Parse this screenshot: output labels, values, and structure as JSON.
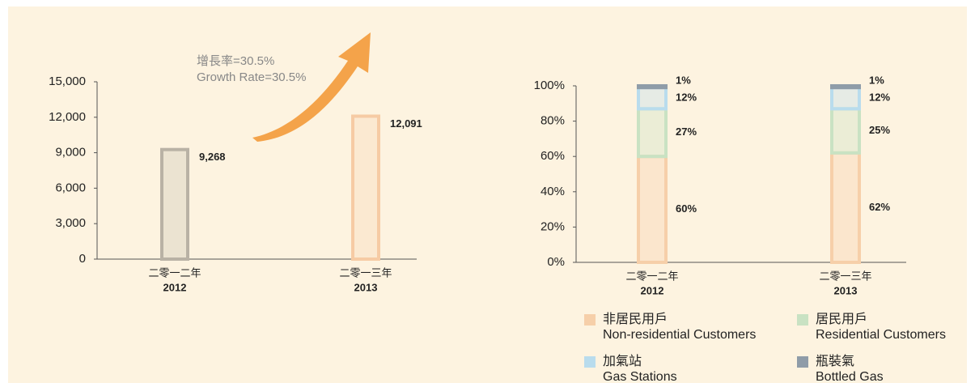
{
  "chart_data": [
    {
      "type": "bar",
      "annotation": [
        "增長率=30.5%",
        "Growth Rate=30.5%"
      ],
      "categories": [
        "2012",
        "2013"
      ],
      "categories_zh": [
        "二零一二年",
        "二零一三年"
      ],
      "series": [
        {
          "name": null,
          "colors": [
            "#b9b2a5",
            "#f6cba4"
          ],
          "values": [
            9268,
            12091
          ],
          "value_labels": [
            "9,268",
            "12,091"
          ]
        }
      ],
      "ylim": [
        0,
        15000
      ],
      "yticks": [
        0,
        {
          "value": 3000,
          "label": "3,000"
        },
        {
          "value": 6000,
          "label": "6,000"
        },
        {
          "value": 9000,
          "label": "9,000"
        },
        {
          "value": 12000,
          "label": "12,000"
        },
        {
          "value": 15000,
          "label": "15,000"
        }
      ]
    },
    {
      "type": "stacked_bar",
      "categories": [
        "2012",
        "2013"
      ],
      "categories_zh": [
        "二零一二年",
        "二零一三年"
      ],
      "series": [
        {
          "name": "Non-residential Customers",
          "name_zh": "非居民用戶",
          "color": "#f6cfa9",
          "values": [
            60,
            62
          ],
          "value_labels": [
            "60%",
            "62%"
          ]
        },
        {
          "name": "Residential Customers",
          "name_zh": "居民用戶",
          "color": "#c9e2c3",
          "values": [
            27,
            25
          ],
          "value_labels": [
            "27%",
            "25%"
          ]
        },
        {
          "name": "Gas Stations",
          "name_zh": "加氣站",
          "color": "#b9dced",
          "values": [
            12,
            12
          ],
          "value_labels": [
            "12%",
            "12%"
          ]
        },
        {
          "name": "Bottled Gas",
          "name_zh": "瓶裝氣",
          "color": "#8f9ca8",
          "values": [
            1,
            1
          ],
          "value_labels": [
            "1%",
            "1%"
          ]
        }
      ],
      "ylim": [
        0,
        100
      ],
      "yticks": [
        {
          "value": 0,
          "label": "0%"
        },
        {
          "value": 20,
          "label": "20%"
        },
        {
          "value": 40,
          "label": "40%"
        },
        {
          "value": 60,
          "label": "60%"
        },
        {
          "value": 80,
          "label": "80%"
        },
        {
          "value": 100,
          "label": "100%"
        }
      ]
    }
  ]
}
